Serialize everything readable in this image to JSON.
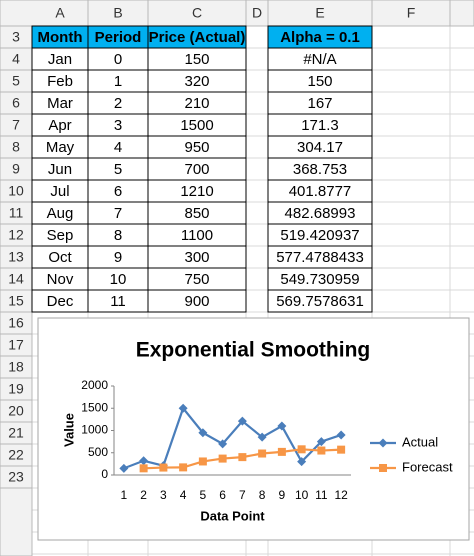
{
  "spreadsheet": {
    "columns": [
      "A",
      "B",
      "C",
      "D",
      "E",
      "F"
    ],
    "rows": [
      3,
      4,
      5,
      6,
      7,
      8,
      9,
      10,
      11,
      12,
      13,
      14,
      15,
      16,
      17,
      18,
      19,
      20,
      21,
      22,
      23
    ],
    "table": {
      "header": [
        "Month",
        "Period",
        "Price (Actual)"
      ],
      "rows": [
        [
          "Jan",
          0,
          150
        ],
        [
          "Feb",
          1,
          320
        ],
        [
          "Mar",
          2,
          210
        ],
        [
          "Apr",
          3,
          1500
        ],
        [
          "May",
          4,
          950
        ],
        [
          "Jun",
          5,
          700
        ],
        [
          "Jul",
          6,
          1210
        ],
        [
          "Aug",
          7,
          850
        ],
        [
          "Sep",
          8,
          1100
        ],
        [
          "Oct",
          9,
          300
        ],
        [
          "Nov",
          10,
          750
        ],
        [
          "Dec",
          11,
          900
        ]
      ]
    },
    "forecast": {
      "header": "Alpha = 0.1",
      "values": [
        "#N/A",
        150,
        167,
        171.3,
        304.17,
        368.753,
        401.8777,
        482.68993,
        519.420937,
        577.4788433,
        549.730959,
        569.7578631
      ]
    }
  },
  "chart_data": {
    "type": "line",
    "title": "Exponential Smoothing",
    "x_label": "Data Point",
    "y_label": "Value",
    "categories": [
      "1",
      "2",
      "3",
      "4",
      "5",
      "6",
      "7",
      "8",
      "9",
      "10",
      "11",
      "12"
    ],
    "series": [
      {
        "name": "Actual",
        "color": "#4a7ebb",
        "marker": "diamond",
        "values": [
          150,
          320,
          210,
          1500,
          950,
          700,
          1210,
          850,
          1100,
          300,
          750,
          900
        ]
      },
      {
        "name": "Forecast",
        "color": "#f79646",
        "marker": "square",
        "values": [
          null,
          150,
          167,
          171.3,
          304.17,
          368.753,
          401.8777,
          482.68993,
          519.420937,
          577.4788433,
          549.730959,
          569.7578631
        ]
      }
    ],
    "ylim": [
      0,
      2000
    ],
    "yticks": [
      0,
      500,
      1000,
      1500,
      2000
    ],
    "grid": false,
    "legend": "right"
  }
}
